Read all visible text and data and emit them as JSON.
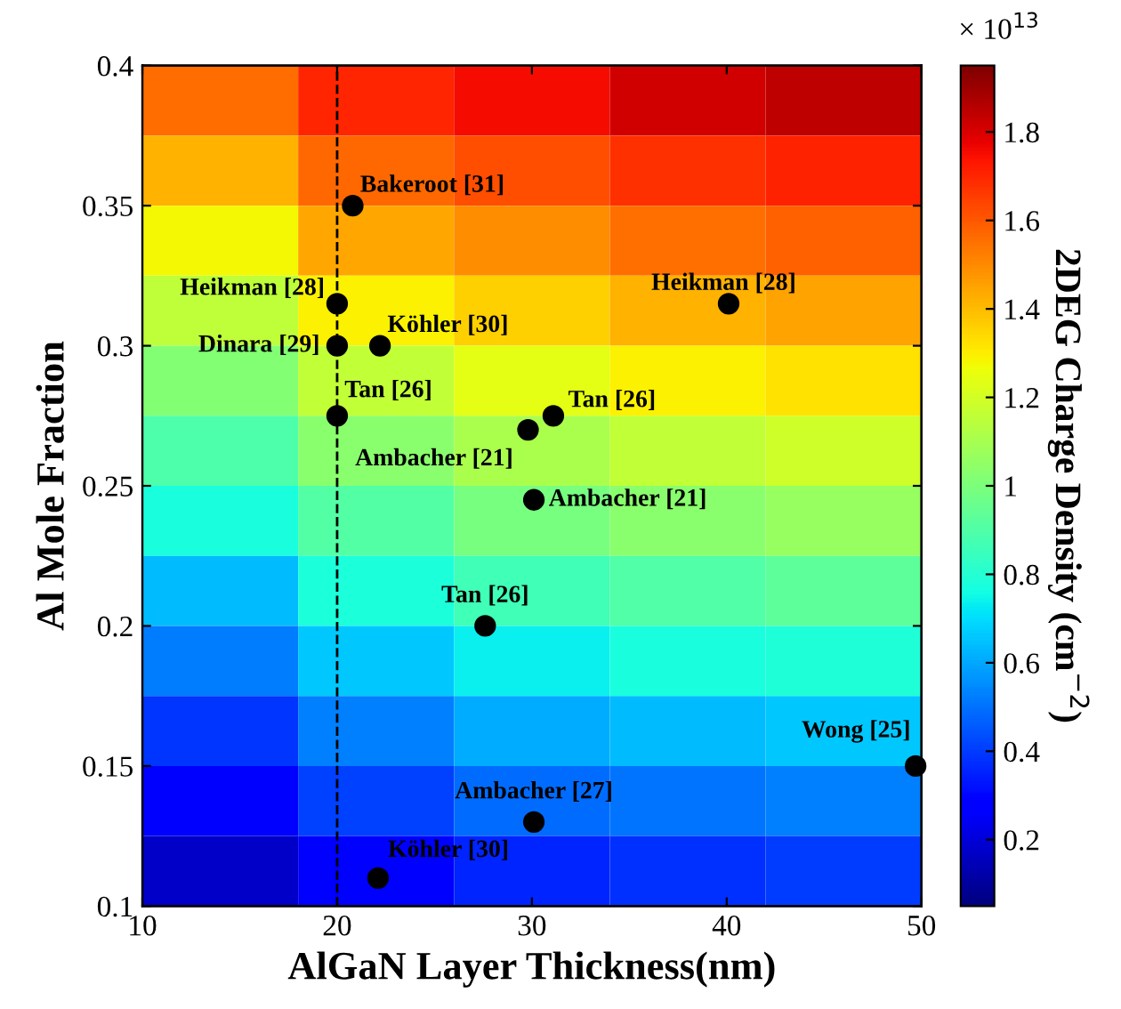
{
  "chart_data": [
    {
      "type": "heatmap",
      "clabel": "2DEG Charge Density (cm$^{−2}$)",
      "clim": [
        0.05,
        1.95
      ],
      "cticks": [
        0.2,
        0.4,
        0.6,
        0.8,
        1,
        1.2,
        1.4,
        1.6,
        1.8
      ],
      "categories": [
        null,
        null,
        null,
        null,
        null
      ],
      "y_categories": [
        null,
        null,
        null,
        null,
        null,
        null,
        null,
        null,
        null,
        null,
        null,
        null
      ],
      "cells": [
        [
          1.56,
          1.7,
          1.75,
          1.81,
          1.84
        ],
        [
          1.42,
          1.57,
          1.62,
          1.68,
          1.71
        ],
        [
          1.28,
          1.44,
          1.49,
          1.55,
          1.58
        ],
        [
          1.15,
          1.29,
          1.36,
          1.42,
          1.45
        ],
        [
          1.02,
          1.16,
          1.24,
          1.29,
          1.32
        ],
        [
          0.89,
          1.03,
          1.11,
          1.16,
          1.19
        ],
        [
          0.77,
          0.91,
          0.99,
          1.03,
          1.06
        ],
        [
          0.64,
          0.78,
          0.86,
          0.9,
          0.93
        ],
        [
          0.52,
          0.66,
          0.74,
          0.77,
          0.79
        ],
        [
          0.39,
          0.53,
          0.61,
          0.64,
          0.66
        ],
        [
          0.28,
          0.41,
          0.49,
          0.51,
          0.53
        ],
        [
          0.17,
          0.28,
          0.36,
          0.38,
          0.4
        ]
      ],
      "annotations": [
        "× 10$^{13}$"
      ]
    },
    {
      "type": "scatter",
      "xlabel": "AlGaN Layer Thickness(nm)",
      "ylabel": "Al Mole Fraction",
      "xlim": [
        10,
        50
      ],
      "xticks": [
        10,
        20,
        30,
        40,
        50
      ],
      "ylim": [
        0.1,
        0.4
      ],
      "yticks": [
        0.1,
        0.15,
        0.2,
        0.25,
        0.3,
        0.35,
        0.4
      ],
      "series": [
        {
          "color": "#000000",
          "marker": "circle",
          "x": [
            20.8,
            20.0,
            20.0,
            22.2,
            40.1,
            20.0,
            29.8,
            31.1,
            30.1,
            27.6,
            49.7,
            30.1,
            22.1
          ],
          "values": [
            0.35,
            0.315,
            0.3,
            0.3,
            0.315,
            0.275,
            0.27,
            0.275,
            0.245,
            0.2,
            0.15,
            0.13,
            0.11
          ]
        }
      ],
      "ref_lines": [
        {
          "axis": "x",
          "value": 20,
          "color": "#000000",
          "line_style": "dashed"
        }
      ],
      "annotations": [
        {
          "text": "Bakeroot [31]",
          "x": 20.8,
          "y": 0.35
        },
        {
          "text": "Heikman [28]",
          "x": 20.0,
          "y": 0.315
        },
        {
          "text": "Dinara [29]",
          "x": 20.0,
          "y": 0.3
        },
        {
          "text": "Köhler [30]",
          "x": 22.2,
          "y": 0.3
        },
        {
          "text": "Heikman [28]",
          "x": 40.1,
          "y": 0.315
        },
        {
          "text": "Tan [26]",
          "x": 20.0,
          "y": 0.275
        },
        {
          "text": "Ambacher [21]",
          "x": 29.8,
          "y": 0.27
        },
        {
          "text": "Tan [26]",
          "x": 31.1,
          "y": 0.275
        },
        {
          "text": "Ambacher [21]",
          "x": 30.1,
          "y": 0.245
        },
        {
          "text": "Tan [26]",
          "x": 27.6,
          "y": 0.2
        },
        {
          "text": "Wong [25]",
          "x": 49.7,
          "y": 0.15
        },
        {
          "text": "Ambacher [27]",
          "x": 30.1,
          "y": 0.13
        },
        {
          "text": "Köhler [30]",
          "x": 22.1,
          "y": 0.11
        }
      ],
      "grid": false
    }
  ]
}
